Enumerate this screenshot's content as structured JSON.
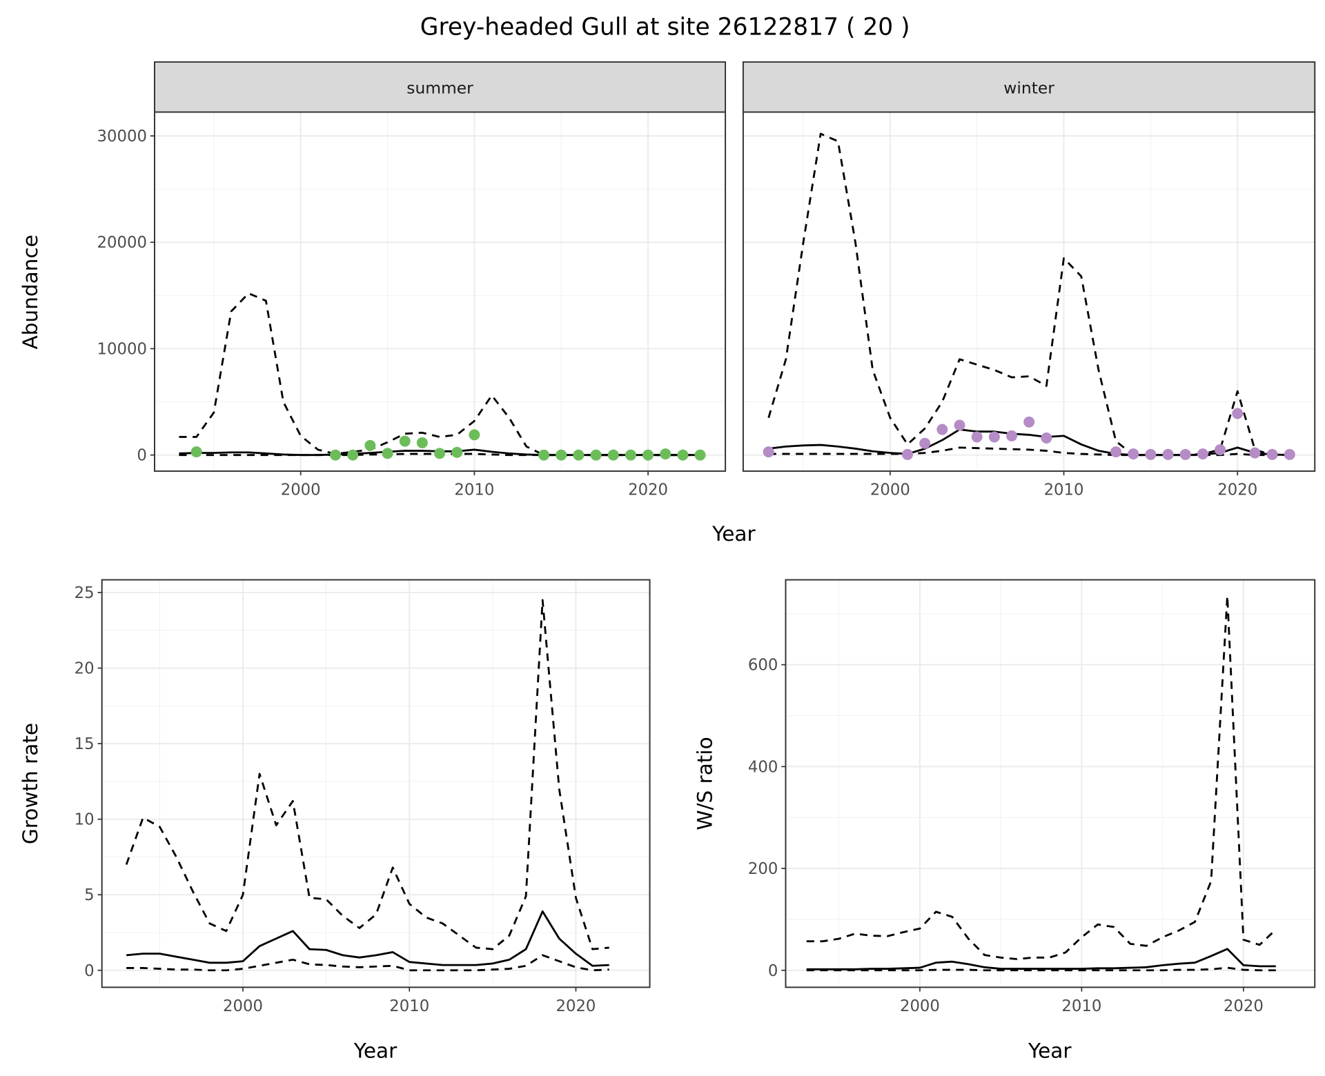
{
  "title": "Grey-headed Gull at site 26122817 ( 20 )",
  "chart_data": [
    {
      "type": "line",
      "panel": "summer",
      "strip_label": "summer",
      "xlabel": "Year",
      "ylabel": "Abundance",
      "xticks": [
        2000,
        2010,
        2020
      ],
      "yticks": [
        0,
        10000,
        20000,
        30000
      ],
      "ylim": [
        -1500,
        32000
      ],
      "xlim": [
        1991.5,
        2024.5
      ],
      "grid": true,
      "point_color": "#6cbd5a",
      "x": [
        1993,
        1994,
        1995,
        1996,
        1997,
        1998,
        1999,
        2000,
        2001,
        2002,
        2003,
        2004,
        2005,
        2006,
        2007,
        2008,
        2009,
        2010,
        2011,
        2012,
        2013,
        2014,
        2015,
        2016,
        2017,
        2018,
        2019,
        2020,
        2021,
        2022,
        2023
      ],
      "series": [
        {
          "style": "solid",
          "values": [
            150,
            200,
            200,
            250,
            250,
            150,
            50,
            0,
            0,
            50,
            100,
            200,
            300,
            400,
            400,
            350,
            350,
            500,
            300,
            150,
            50,
            0,
            0,
            0,
            0,
            0,
            0,
            0,
            0,
            0,
            0
          ]
        },
        {
          "style": "dashed-upper",
          "values": [
            1700,
            1700,
            4000,
            13500,
            15200,
            14500,
            5000,
            1800,
            500,
            100,
            300,
            500,
            1200,
            2000,
            2100,
            1700,
            1900,
            3200,
            5600,
            3500,
            800,
            0,
            0,
            0,
            0,
            0,
            0,
            0,
            0,
            0,
            0
          ]
        },
        {
          "style": "dashed-lower",
          "values": [
            0,
            0,
            0,
            0,
            0,
            0,
            0,
            0,
            0,
            0,
            0,
            50,
            50,
            100,
            100,
            100,
            100,
            100,
            50,
            0,
            0,
            0,
            0,
            0,
            0,
            0,
            0,
            0,
            0,
            0,
            0
          ]
        }
      ],
      "points": {
        "x": [
          1994,
          2002,
          2003,
          2004,
          2005,
          2006,
          2007,
          2008,
          2009,
          2010,
          2014,
          2015,
          2016,
          2017,
          2018,
          2019,
          2020,
          2021,
          2022,
          2023
        ],
        "y": [
          300,
          0,
          0,
          900,
          150,
          1300,
          1150,
          150,
          250,
          1900,
          0,
          0,
          0,
          0,
          0,
          0,
          0,
          100,
          0,
          0
        ]
      }
    },
    {
      "type": "line",
      "panel": "winter",
      "strip_label": "winter",
      "xlabel": "Year",
      "ylabel": "Abundance",
      "xticks": [
        2000,
        2010,
        2020
      ],
      "yticks": [
        0,
        10000,
        20000,
        30000
      ],
      "ylim": [
        -1500,
        32000
      ],
      "xlim": [
        1991.5,
        2024.5
      ],
      "grid": true,
      "point_color": "#b58cc6",
      "x": [
        1993,
        1994,
        1995,
        1996,
        1997,
        1998,
        1999,
        2000,
        2001,
        2002,
        2003,
        2004,
        2005,
        2006,
        2007,
        2008,
        2009,
        2010,
        2011,
        2012,
        2013,
        2014,
        2015,
        2016,
        2017,
        2018,
        2019,
        2020,
        2021,
        2022,
        2023
      ],
      "series": [
        {
          "style": "solid",
          "values": [
            600,
            800,
            900,
            950,
            800,
            600,
            350,
            200,
            100,
            600,
            1400,
            2400,
            2200,
            2200,
            2000,
            1900,
            1700,
            1800,
            1000,
            400,
            100,
            0,
            0,
            0,
            0,
            50,
            200,
            700,
            200,
            50,
            0
          ]
        },
        {
          "style": "dashed-upper",
          "values": [
            3500,
            9000,
            20000,
            30200,
            29500,
            20000,
            8000,
            3500,
            1000,
            2500,
            5000,
            9000,
            8500,
            8000,
            7300,
            7400,
            6500,
            18500,
            16800,
            8000,
            1300,
            0,
            0,
            0,
            0,
            100,
            500,
            6000,
            500,
            0,
            0
          ]
        },
        {
          "style": "dashed-lower",
          "values": [
            100,
            100,
            100,
            100,
            100,
            100,
            100,
            100,
            100,
            200,
            400,
            700,
            650,
            600,
            550,
            500,
            400,
            200,
            100,
            50,
            0,
            0,
            0,
            0,
            0,
            0,
            0,
            100,
            0,
            0,
            0
          ]
        }
      ],
      "points": {
        "x": [
          1993,
          2001,
          2002,
          2003,
          2004,
          2005,
          2006,
          2007,
          2008,
          2009,
          2013,
          2014,
          2015,
          2016,
          2017,
          2018,
          2019,
          2020,
          2021,
          2022,
          2023
        ],
        "y": [
          300,
          50,
          1100,
          2400,
          2800,
          1700,
          1700,
          1800,
          3100,
          1600,
          300,
          100,
          50,
          50,
          50,
          100,
          500,
          3900,
          200,
          50,
          50
        ]
      }
    },
    {
      "type": "line",
      "panel": "growth",
      "xlabel": "Year",
      "ylabel": "Growth rate",
      "xticks": [
        2000,
        2010,
        2020
      ],
      "yticks": [
        0,
        5,
        10,
        15,
        20,
        25
      ],
      "ylim": [
        -1.1,
        25.8
      ],
      "xlim": [
        1991.5,
        2024.5
      ],
      "grid": true,
      "x": [
        1993,
        1994,
        1995,
        1996,
        1997,
        1998,
        1999,
        2000,
        2001,
        2002,
        2003,
        2004,
        2005,
        2006,
        2007,
        2008,
        2009,
        2010,
        2011,
        2012,
        2013,
        2014,
        2015,
        2016,
        2017,
        2018,
        2019,
        2020,
        2021,
        2022
      ],
      "series": [
        {
          "style": "solid",
          "values": [
            1.0,
            1.1,
            1.1,
            0.9,
            0.7,
            0.5,
            0.5,
            0.6,
            1.6,
            2.1,
            2.6,
            1.4,
            1.35,
            1.0,
            0.85,
            1.0,
            1.2,
            0.55,
            0.45,
            0.35,
            0.35,
            0.35,
            0.45,
            0.7,
            1.4,
            3.9,
            2.1,
            1.1,
            0.3,
            0.35
          ]
        },
        {
          "style": "dashed-upper",
          "values": [
            7.0,
            10.1,
            9.5,
            7.5,
            5.2,
            3.1,
            2.6,
            5.0,
            13.0,
            9.6,
            11.2,
            4.8,
            4.7,
            3.6,
            2.8,
            3.7,
            6.8,
            4.4,
            3.5,
            3.1,
            2.3,
            1.5,
            1.4,
            2.3,
            4.9,
            24.5,
            12.0,
            4.8,
            1.4,
            1.5
          ]
        },
        {
          "style": "dashed-lower",
          "values": [
            0.15,
            0.15,
            0.1,
            0.05,
            0.05,
            0,
            0,
            0.1,
            0.3,
            0.5,
            0.7,
            0.4,
            0.35,
            0.25,
            0.2,
            0.25,
            0.3,
            0,
            0,
            0,
            0,
            0,
            0.05,
            0.1,
            0.3,
            1.0,
            0.6,
            0.2,
            0,
            0.05
          ]
        }
      ]
    },
    {
      "type": "line",
      "panel": "ws_ratio",
      "xlabel": "Year",
      "ylabel": "W/S ratio",
      "xticks": [
        2000,
        2010,
        2020
      ],
      "yticks": [
        0,
        200,
        400,
        600
      ],
      "ylim": [
        -35,
        765
      ],
      "xlim": [
        1991.5,
        2024.5
      ],
      "grid": true,
      "x": [
        1993,
        1994,
        1995,
        1996,
        1997,
        1998,
        1999,
        2000,
        2001,
        2002,
        2003,
        2004,
        2005,
        2006,
        2007,
        2008,
        2009,
        2010,
        2011,
        2012,
        2013,
        2014,
        2015,
        2016,
        2017,
        2018,
        2019,
        2020,
        2021,
        2022
      ],
      "series": [
        {
          "style": "solid",
          "values": [
            2,
            2,
            2,
            2,
            3,
            3,
            4,
            5,
            15,
            17,
            12,
            6,
            3,
            3,
            3,
            3,
            3,
            3,
            4,
            4,
            5,
            6,
            10,
            13,
            15,
            28,
            42,
            10,
            8,
            8
          ]
        },
        {
          "style": "dashed-upper",
          "values": [
            57,
            57,
            62,
            72,
            68,
            67,
            75,
            82,
            115,
            105,
            62,
            30,
            25,
            22,
            25,
            25,
            35,
            65,
            90,
            85,
            52,
            48,
            65,
            78,
            95,
            175,
            735,
            60,
            50,
            80
          ]
        },
        {
          "style": "dashed-lower",
          "values": [
            0,
            0,
            0,
            0,
            0,
            0,
            0,
            0,
            1,
            1,
            1,
            0,
            0,
            0,
            0,
            0,
            0,
            0,
            0,
            0,
            0,
            0,
            0,
            1,
            1,
            2,
            5,
            1,
            0,
            0
          ]
        }
      ]
    }
  ]
}
